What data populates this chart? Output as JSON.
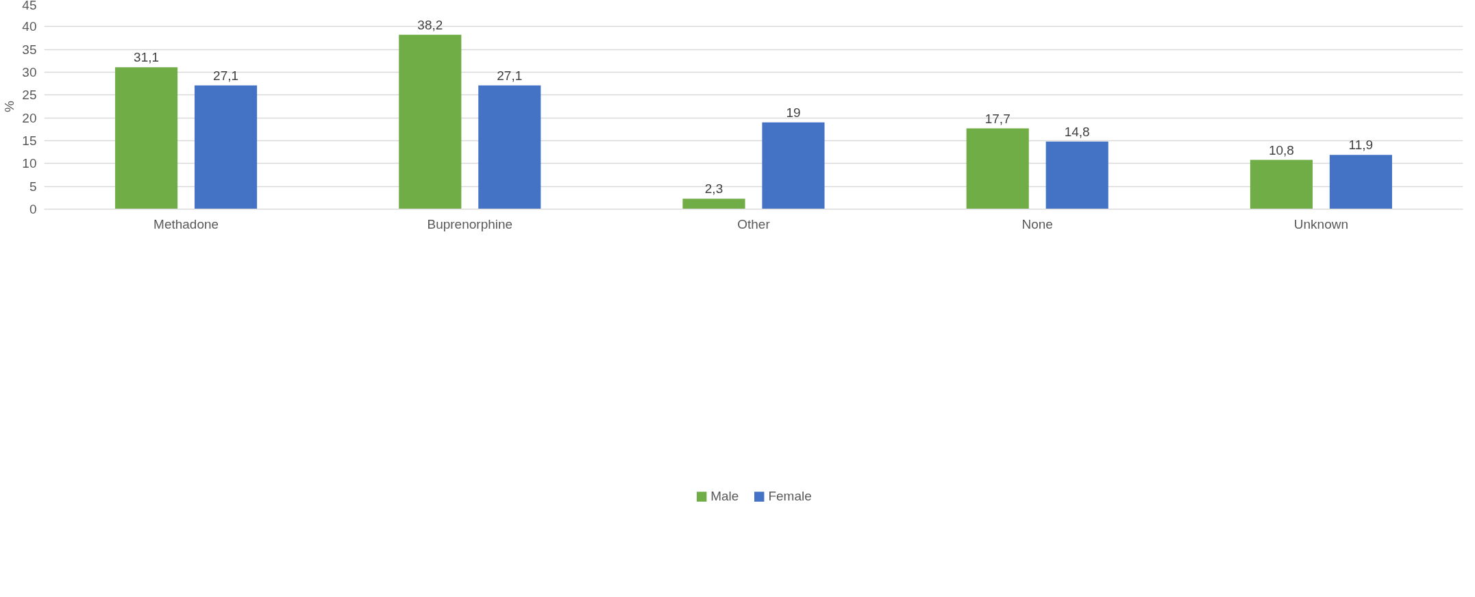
{
  "chart_data": {
    "type": "bar",
    "ylabel": "%",
    "categories": [
      "Methadone",
      "Buprenorphine",
      "Other",
      "None",
      "Unknown"
    ],
    "series": [
      {
        "name": "Male",
        "color": "#70ad47",
        "values": [
          31.1,
          38.2,
          2.3,
          17.7,
          10.8
        ],
        "value_labels": [
          "31,1",
          "38,2",
          "2,3",
          "17,7",
          "10,8"
        ]
      },
      {
        "name": "Female",
        "color": "#4472c4",
        "values": [
          27.1,
          27.1,
          19,
          14.8,
          11.9
        ],
        "value_labels": [
          "27,1",
          "27,1",
          "19",
          "14,8",
          "11,9"
        ]
      }
    ],
    "ylim": [
      0,
      45
    ],
    "yticks": [
      0,
      5,
      10,
      15,
      20,
      25,
      30,
      35,
      40,
      45
    ],
    "grid": "y",
    "legend": "bottom"
  }
}
